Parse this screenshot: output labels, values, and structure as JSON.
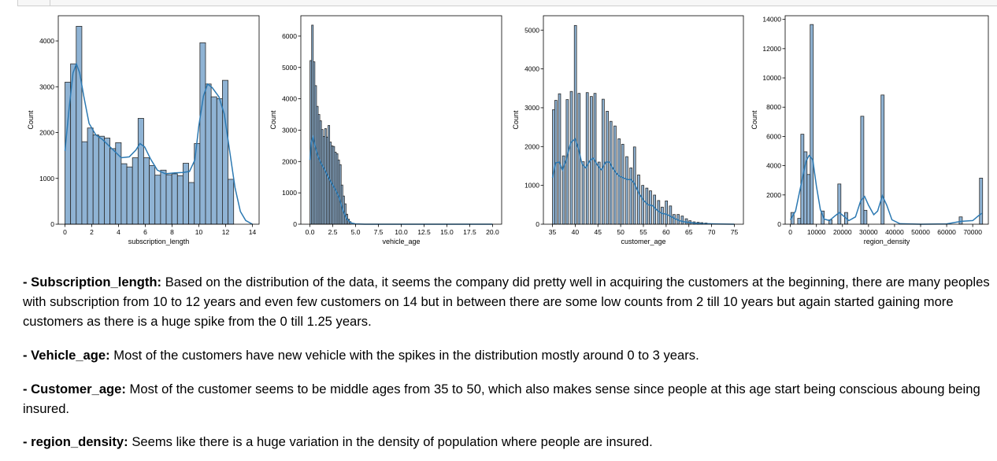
{
  "chart_data": [
    {
      "type": "histogram",
      "xlabel": "subscription_length",
      "ylabel": "Count",
      "xlim": [
        -0.5,
        14.5
      ],
      "ylim": [
        0,
        4550
      ],
      "xticks": [
        0,
        2,
        4,
        6,
        8,
        10,
        12,
        14
      ],
      "yticks": [
        0,
        1000,
        2000,
        3000,
        4000
      ],
      "bars": [
        {
          "x0": 0.0,
          "x1": 0.42,
          "count": 3100
        },
        {
          "x0": 0.42,
          "x1": 0.84,
          "count": 3500
        },
        {
          "x0": 0.84,
          "x1": 1.26,
          "count": 4320
        },
        {
          "x0": 1.26,
          "x1": 1.68,
          "count": 1800
        },
        {
          "x0": 1.68,
          "x1": 2.1,
          "count": 2100
        },
        {
          "x0": 2.1,
          "x1": 2.52,
          "count": 1950
        },
        {
          "x0": 2.52,
          "x1": 2.94,
          "count": 1920
        },
        {
          "x0": 2.94,
          "x1": 3.36,
          "count": 1880
        },
        {
          "x0": 3.36,
          "x1": 3.78,
          "count": 1650
        },
        {
          "x0": 3.78,
          "x1": 4.2,
          "count": 1780
        },
        {
          "x0": 4.2,
          "x1": 4.62,
          "count": 1320
        },
        {
          "x0": 4.62,
          "x1": 5.04,
          "count": 1250
        },
        {
          "x0": 5.04,
          "x1": 5.46,
          "count": 1450
        },
        {
          "x0": 5.46,
          "x1": 5.88,
          "count": 2310
        },
        {
          "x0": 5.88,
          "x1": 6.3,
          "count": 1450
        },
        {
          "x0": 6.3,
          "x1": 6.72,
          "count": 1280
        },
        {
          "x0": 6.72,
          "x1": 7.14,
          "count": 1070
        },
        {
          "x0": 7.14,
          "x1": 7.56,
          "count": 1180
        },
        {
          "x0": 7.56,
          "x1": 7.98,
          "count": 1080
        },
        {
          "x0": 7.98,
          "x1": 8.4,
          "count": 1100
        },
        {
          "x0": 8.4,
          "x1": 8.82,
          "count": 1060
        },
        {
          "x0": 8.82,
          "x1": 9.24,
          "count": 1330
        },
        {
          "x0": 9.24,
          "x1": 9.66,
          "count": 910
        },
        {
          "x0": 9.66,
          "x1": 10.08,
          "count": 1760
        },
        {
          "x0": 10.08,
          "x1": 10.5,
          "count": 3960
        },
        {
          "x0": 10.5,
          "x1": 10.92,
          "count": 3060
        },
        {
          "x0": 10.92,
          "x1": 11.34,
          "count": 2780
        },
        {
          "x0": 11.34,
          "x1": 11.76,
          "count": 2740
        },
        {
          "x0": 11.76,
          "x1": 12.18,
          "count": 3140
        },
        {
          "x0": 12.18,
          "x1": 12.6,
          "count": 980
        }
      ],
      "kde": [
        [
          0,
          1600
        ],
        [
          0.3,
          2500
        ],
        [
          0.6,
          3300
        ],
        [
          0.85,
          3500
        ],
        [
          1.1,
          3300
        ],
        [
          1.4,
          2800
        ],
        [
          1.8,
          2200
        ],
        [
          2.3,
          1950
        ],
        [
          2.8,
          1850
        ],
        [
          3.5,
          1650
        ],
        [
          4.2,
          1450
        ],
        [
          4.8,
          1470
        ],
        [
          5.3,
          1620
        ],
        [
          5.6,
          1760
        ],
        [
          5.95,
          1690
        ],
        [
          6.4,
          1420
        ],
        [
          6.9,
          1180
        ],
        [
          7.5,
          1100
        ],
        [
          8.2,
          1120
        ],
        [
          8.8,
          1130
        ],
        [
          9.3,
          1150
        ],
        [
          9.7,
          1400
        ],
        [
          10.0,
          2150
        ],
        [
          10.35,
          2800
        ],
        [
          10.65,
          3060
        ],
        [
          11.0,
          2980
        ],
        [
          11.5,
          2780
        ],
        [
          11.9,
          2400
        ],
        [
          12.3,
          1600
        ],
        [
          12.7,
          800
        ],
        [
          13.1,
          280
        ],
        [
          13.5,
          80
        ],
        [
          14.0,
          0
        ]
      ]
    },
    {
      "type": "histogram",
      "xlabel": "vehicle_age",
      "ylabel": "Count",
      "xlim": [
        -1.0,
        21.0
      ],
      "ylim": [
        0,
        6650
      ],
      "xticks": [
        0.0,
        2.5,
        5.0,
        7.5,
        10.0,
        12.5,
        15.0,
        17.5,
        20.0
      ],
      "xtick_labels": [
        "0.0",
        "2.5",
        "5.0",
        "7.5",
        "10.0",
        "12.5",
        "15.0",
        "17.5",
        "20.0"
      ],
      "yticks": [
        0,
        1000,
        2000,
        3000,
        4000,
        5000,
        6000
      ],
      "bars": [
        {
          "x0": 0.0,
          "x1": 0.18,
          "count": 5220
        },
        {
          "x0": 0.18,
          "x1": 0.36,
          "count": 6350
        },
        {
          "x0": 0.36,
          "x1": 0.54,
          "count": 5180
        },
        {
          "x0": 0.54,
          "x1": 0.72,
          "count": 4420
        },
        {
          "x0": 0.72,
          "x1": 0.9,
          "count": 3760
        },
        {
          "x0": 0.9,
          "x1": 1.08,
          "count": 3500
        },
        {
          "x0": 1.08,
          "x1": 1.26,
          "count": 3300
        },
        {
          "x0": 1.26,
          "x1": 1.44,
          "count": 3020
        },
        {
          "x0": 1.44,
          "x1": 1.62,
          "count": 2800
        },
        {
          "x0": 1.62,
          "x1": 1.8,
          "count": 3050
        },
        {
          "x0": 1.8,
          "x1": 1.98,
          "count": 2780
        },
        {
          "x0": 1.98,
          "x1": 2.16,
          "count": 3150
        },
        {
          "x0": 2.16,
          "x1": 2.34,
          "count": 2620
        },
        {
          "x0": 2.34,
          "x1": 2.52,
          "count": 2500
        },
        {
          "x0": 2.52,
          "x1": 2.7,
          "count": 2480
        },
        {
          "x0": 2.7,
          "x1": 2.88,
          "count": 2300
        },
        {
          "x0": 2.88,
          "x1": 3.06,
          "count": 2250
        },
        {
          "x0": 3.06,
          "x1": 3.24,
          "count": 2050
        },
        {
          "x0": 3.24,
          "x1": 3.42,
          "count": 1900
        },
        {
          "x0": 3.42,
          "x1": 3.6,
          "count": 1250
        },
        {
          "x0": 3.6,
          "x1": 3.78,
          "count": 900
        },
        {
          "x0": 3.78,
          "x1": 3.96,
          "count": 650
        },
        {
          "x0": 3.96,
          "x1": 4.14,
          "count": 320
        },
        {
          "x0": 4.14,
          "x1": 4.32,
          "count": 160
        },
        {
          "x0": 4.32,
          "x1": 4.5,
          "count": 80
        }
      ],
      "kde": [
        [
          0.0,
          2050
        ],
        [
          0.15,
          2600
        ],
        [
          0.35,
          2780
        ],
        [
          0.6,
          2450
        ],
        [
          0.9,
          2150
        ],
        [
          1.2,
          1950
        ],
        [
          1.6,
          1750
        ],
        [
          2.0,
          1500
        ],
        [
          2.4,
          1300
        ],
        [
          2.8,
          1100
        ],
        [
          3.2,
          850
        ],
        [
          3.6,
          450
        ],
        [
          4.0,
          180
        ],
        [
          4.5,
          40
        ],
        [
          5.0,
          10
        ],
        [
          6.0,
          0
        ],
        [
          20.0,
          0
        ]
      ]
    },
    {
      "type": "histogram",
      "xlabel": "customer_age",
      "ylabel": "Count",
      "xlim": [
        33.0,
        77.0
      ],
      "ylim": [
        0,
        5370
      ],
      "xticks": [
        35,
        40,
        45,
        50,
        55,
        60,
        65,
        70,
        75
      ],
      "yticks": [
        0,
        1000,
        2000,
        3000,
        4000,
        5000
      ],
      "bars": [
        {
          "x0": 35.0,
          "x1": 35.5,
          "count": 2950
        },
        {
          "x0": 35.5,
          "x1": 36.0,
          "count": 3190
        },
        {
          "x0": 36.3,
          "x1": 36.8,
          "count": 3360
        },
        {
          "x0": 37.2,
          "x1": 37.7,
          "count": 1760
        },
        {
          "x0": 38.0,
          "x1": 38.5,
          "count": 3210
        },
        {
          "x0": 38.9,
          "x1": 39.4,
          "count": 3420
        },
        {
          "x0": 39.8,
          "x1": 40.3,
          "count": 5120
        },
        {
          "x0": 40.6,
          "x1": 41.1,
          "count": 3370
        },
        {
          "x0": 41.5,
          "x1": 42.0,
          "count": 1610
        },
        {
          "x0": 42.4,
          "x1": 42.9,
          "count": 3390
        },
        {
          "x0": 43.3,
          "x1": 43.8,
          "count": 3290
        },
        {
          "x0": 44.1,
          "x1": 44.6,
          "count": 3370
        },
        {
          "x0": 45.0,
          "x1": 45.5,
          "count": 1600
        },
        {
          "x0": 45.9,
          "x1": 46.4,
          "count": 3220
        },
        {
          "x0": 46.8,
          "x1": 47.3,
          "count": 2910
        },
        {
          "x0": 47.6,
          "x1": 48.1,
          "count": 2650
        },
        {
          "x0": 48.5,
          "x1": 49.0,
          "count": 2530
        },
        {
          "x0": 49.4,
          "x1": 49.9,
          "count": 2200
        },
        {
          "x0": 50.2,
          "x1": 50.7,
          "count": 2060
        },
        {
          "x0": 51.1,
          "x1": 51.6,
          "count": 1740
        },
        {
          "x0": 52.0,
          "x1": 52.5,
          "count": 1450
        },
        {
          "x0": 52.8,
          "x1": 53.3,
          "count": 1990
        },
        {
          "x0": 53.7,
          "x1": 54.2,
          "count": 1270
        },
        {
          "x0": 54.6,
          "x1": 55.1,
          "count": 1000
        },
        {
          "x0": 55.5,
          "x1": 56.0,
          "count": 930
        },
        {
          "x0": 56.3,
          "x1": 56.8,
          "count": 860
        },
        {
          "x0": 57.2,
          "x1": 57.7,
          "count": 750
        },
        {
          "x0": 58.1,
          "x1": 58.6,
          "count": 610
        },
        {
          "x0": 58.9,
          "x1": 59.4,
          "count": 440
        },
        {
          "x0": 59.8,
          "x1": 60.3,
          "count": 600
        },
        {
          "x0": 60.7,
          "x1": 61.2,
          "count": 470
        },
        {
          "x0": 61.5,
          "x1": 62.0,
          "count": 250
        },
        {
          "x0": 62.4,
          "x1": 62.9,
          "count": 250
        },
        {
          "x0": 63.3,
          "x1": 63.8,
          "count": 210
        },
        {
          "x0": 64.2,
          "x1": 64.7,
          "count": 140
        },
        {
          "x0": 65.0,
          "x1": 65.5,
          "count": 90
        },
        {
          "x0": 65.9,
          "x1": 66.4,
          "count": 60
        },
        {
          "x0": 66.8,
          "x1": 67.3,
          "count": 50
        },
        {
          "x0": 67.6,
          "x1": 68.1,
          "count": 40
        },
        {
          "x0": 68.5,
          "x1": 69.0,
          "count": 30
        }
      ],
      "kde": [
        [
          35.0,
          1200
        ],
        [
          35.7,
          1580
        ],
        [
          36.5,
          1600
        ],
        [
          37.2,
          1400
        ],
        [
          38.0,
          1650
        ],
        [
          39.0,
          2100
        ],
        [
          40.0,
          2200
        ],
        [
          40.8,
          1900
        ],
        [
          41.5,
          1550
        ],
        [
          42.3,
          1450
        ],
        [
          43.3,
          1650
        ],
        [
          44.0,
          1700
        ],
        [
          45.0,
          1500
        ],
        [
          45.8,
          1400
        ],
        [
          46.7,
          1600
        ],
        [
          47.5,
          1600
        ],
        [
          48.5,
          1400
        ],
        [
          49.5,
          1250
        ],
        [
          50.5,
          1200
        ],
        [
          51.5,
          1150
        ],
        [
          52.3,
          1150
        ],
        [
          53.0,
          1050
        ],
        [
          54.0,
          800
        ],
        [
          55.0,
          620
        ],
        [
          56.0,
          500
        ],
        [
          57.0,
          480
        ],
        [
          58.0,
          360
        ],
        [
          59.0,
          280
        ],
        [
          60.0,
          260
        ],
        [
          61.0,
          200
        ],
        [
          62.0,
          140
        ],
        [
          63.0,
          90
        ],
        [
          64.0,
          60
        ],
        [
          66.0,
          30
        ],
        [
          68.0,
          15
        ],
        [
          72.0,
          5
        ],
        [
          75.0,
          0
        ]
      ]
    },
    {
      "type": "histogram",
      "xlabel": "region_density",
      "ylabel": "Count",
      "xlim": [
        -2000,
        76000
      ],
      "ylim": [
        0,
        14250
      ],
      "xticks": [
        0,
        10000,
        20000,
        30000,
        40000,
        50000,
        60000,
        70000
      ],
      "yticks": [
        0,
        2000,
        4000,
        6000,
        8000,
        10000,
        12000,
        14000
      ],
      "bars": [
        {
          "x0": 200,
          "x1": 1400,
          "count": 800
        },
        {
          "x0": 2800,
          "x1": 4000,
          "count": 400
        },
        {
          "x0": 4000,
          "x1": 5200,
          "count": 6150
        },
        {
          "x0": 5200,
          "x1": 6400,
          "count": 4950
        },
        {
          "x0": 6400,
          "x1": 7600,
          "count": 3400
        },
        {
          "x0": 7600,
          "x1": 8800,
          "count": 13650
        },
        {
          "x0": 11800,
          "x1": 13000,
          "count": 900
        },
        {
          "x0": 14800,
          "x1": 16000,
          "count": 300
        },
        {
          "x0": 18200,
          "x1": 19400,
          "count": 2750
        },
        {
          "x0": 20800,
          "x1": 22000,
          "count": 800
        },
        {
          "x0": 27000,
          "x1": 28200,
          "count": 7380
        },
        {
          "x0": 28200,
          "x1": 29400,
          "count": 950
        },
        {
          "x0": 34800,
          "x1": 36000,
          "count": 8830
        },
        {
          "x0": 64800,
          "x1": 66000,
          "count": 500
        },
        {
          "x0": 72600,
          "x1": 73800,
          "count": 3150
        }
      ],
      "kde": [
        [
          0,
          300
        ],
        [
          2000,
          900
        ],
        [
          4000,
          2600
        ],
        [
          6000,
          4300
        ],
        [
          7200,
          4700
        ],
        [
          8600,
          4400
        ],
        [
          10000,
          2600
        ],
        [
          11500,
          1000
        ],
        [
          13000,
          350
        ],
        [
          15000,
          250
        ],
        [
          17000,
          550
        ],
        [
          18800,
          800
        ],
        [
          20500,
          550
        ],
        [
          22500,
          250
        ],
        [
          25000,
          500
        ],
        [
          27000,
          1600
        ],
        [
          28500,
          1900
        ],
        [
          30000,
          1300
        ],
        [
          32000,
          650
        ],
        [
          33500,
          900
        ],
        [
          35300,
          1950
        ],
        [
          37000,
          1300
        ],
        [
          39000,
          300
        ],
        [
          42000,
          40
        ],
        [
          50000,
          0
        ],
        [
          60000,
          20
        ],
        [
          64000,
          150
        ],
        [
          66000,
          200
        ],
        [
          70000,
          250
        ],
        [
          72000,
          550
        ],
        [
          73500,
          750
        ]
      ]
    }
  ],
  "notes": [
    {
      "label": "- Subscription_length:",
      "text": " Based on the distribution of the data, it seems the company did pretty well in acquiring the customers at the beginning, there are many peoples with subscription from 10 to 12 years and even few customers on 14 but in between there are some low counts from 2 till 10 years but again started gaining more customers as there is a huge spike from the 0 till 1.25 years."
    },
    {
      "label": "- Vehicle_age:",
      "text": " Most of the customers have new vehicle with the spikes in the distribution mostly around 0 to 3 years."
    },
    {
      "label": "- Customer_age:",
      "text": " Most of the customer seems to be middle ages from 35 to 50, which also makes sense since people at this age start being conscious aboung being insured."
    },
    {
      "label": "- region_density:",
      "text": " Seems like there is a huge variation in the density of population where people are insured."
    }
  ],
  "colors": {
    "bar_fill": "#8fb3d4",
    "bar_edge": "#2a2a2a",
    "kde": "#2c79b2"
  }
}
